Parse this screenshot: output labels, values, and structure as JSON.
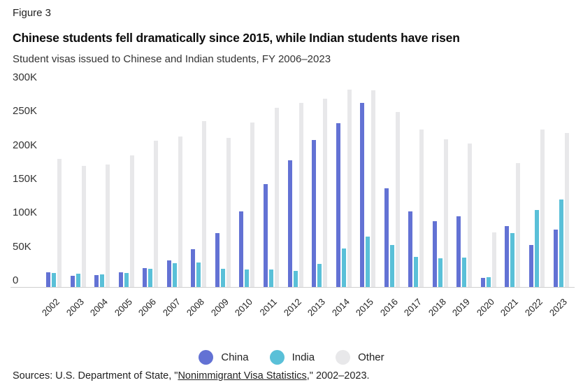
{
  "figure_label": "Figure 3",
  "title": "Chinese students fell dramatically since 2015, while Indian students have risen",
  "subtitle": "Student visas issued to Chinese and Indian students, FY 2006–2023",
  "source": {
    "prefix": "Sources: U.S. Department of State, \"",
    "link": "Nonimmigrant Visa Statistics",
    "suffix": ",\" 2002–2023."
  },
  "colors": {
    "china": "#6372d4",
    "india": "#5ac0d8",
    "other": "#e8e8ea",
    "axis": "#cfcfcf"
  },
  "chart_data": {
    "type": "bar",
    "unit": "thousands of visas",
    "categories": [
      2002,
      2003,
      2004,
      2005,
      2006,
      2007,
      2008,
      2009,
      2010,
      2011,
      2012,
      2013,
      2014,
      2015,
      2016,
      2017,
      2018,
      2019,
      2020,
      2021,
      2022,
      2023
    ],
    "series": [
      {
        "name": "China",
        "color_key": "china",
        "values": [
          21,
          16,
          17,
          21,
          27,
          38,
          54,
          78,
          109,
          148,
          182,
          211,
          236,
          265,
          142,
          109,
          95,
          102,
          13,
          88,
          60,
          83
        ]
      },
      {
        "name": "India",
        "color_key": "india",
        "values": [
          20,
          19,
          18,
          20,
          26,
          34,
          35,
          26,
          25,
          25,
          23,
          33,
          55,
          72,
          60,
          43,
          41,
          42,
          14,
          78,
          111,
          126
        ]
      },
      {
        "name": "Other",
        "color_key": "other",
        "values": [
          184,
          174,
          176,
          189,
          210,
          216,
          239,
          214,
          237,
          258,
          265,
          271,
          284,
          283,
          252,
          227,
          212,
          206,
          79,
          178,
          227,
          221
        ]
      }
    ],
    "ylim": [
      0,
      300
    ],
    "yticks": [
      0,
      50,
      100,
      150,
      200,
      250,
      300
    ],
    "ytick_labels": [
      "0",
      "50K",
      "100K",
      "150K",
      "200K",
      "250K",
      "300K"
    ],
    "grid": false,
    "legend_position": "bottom"
  }
}
